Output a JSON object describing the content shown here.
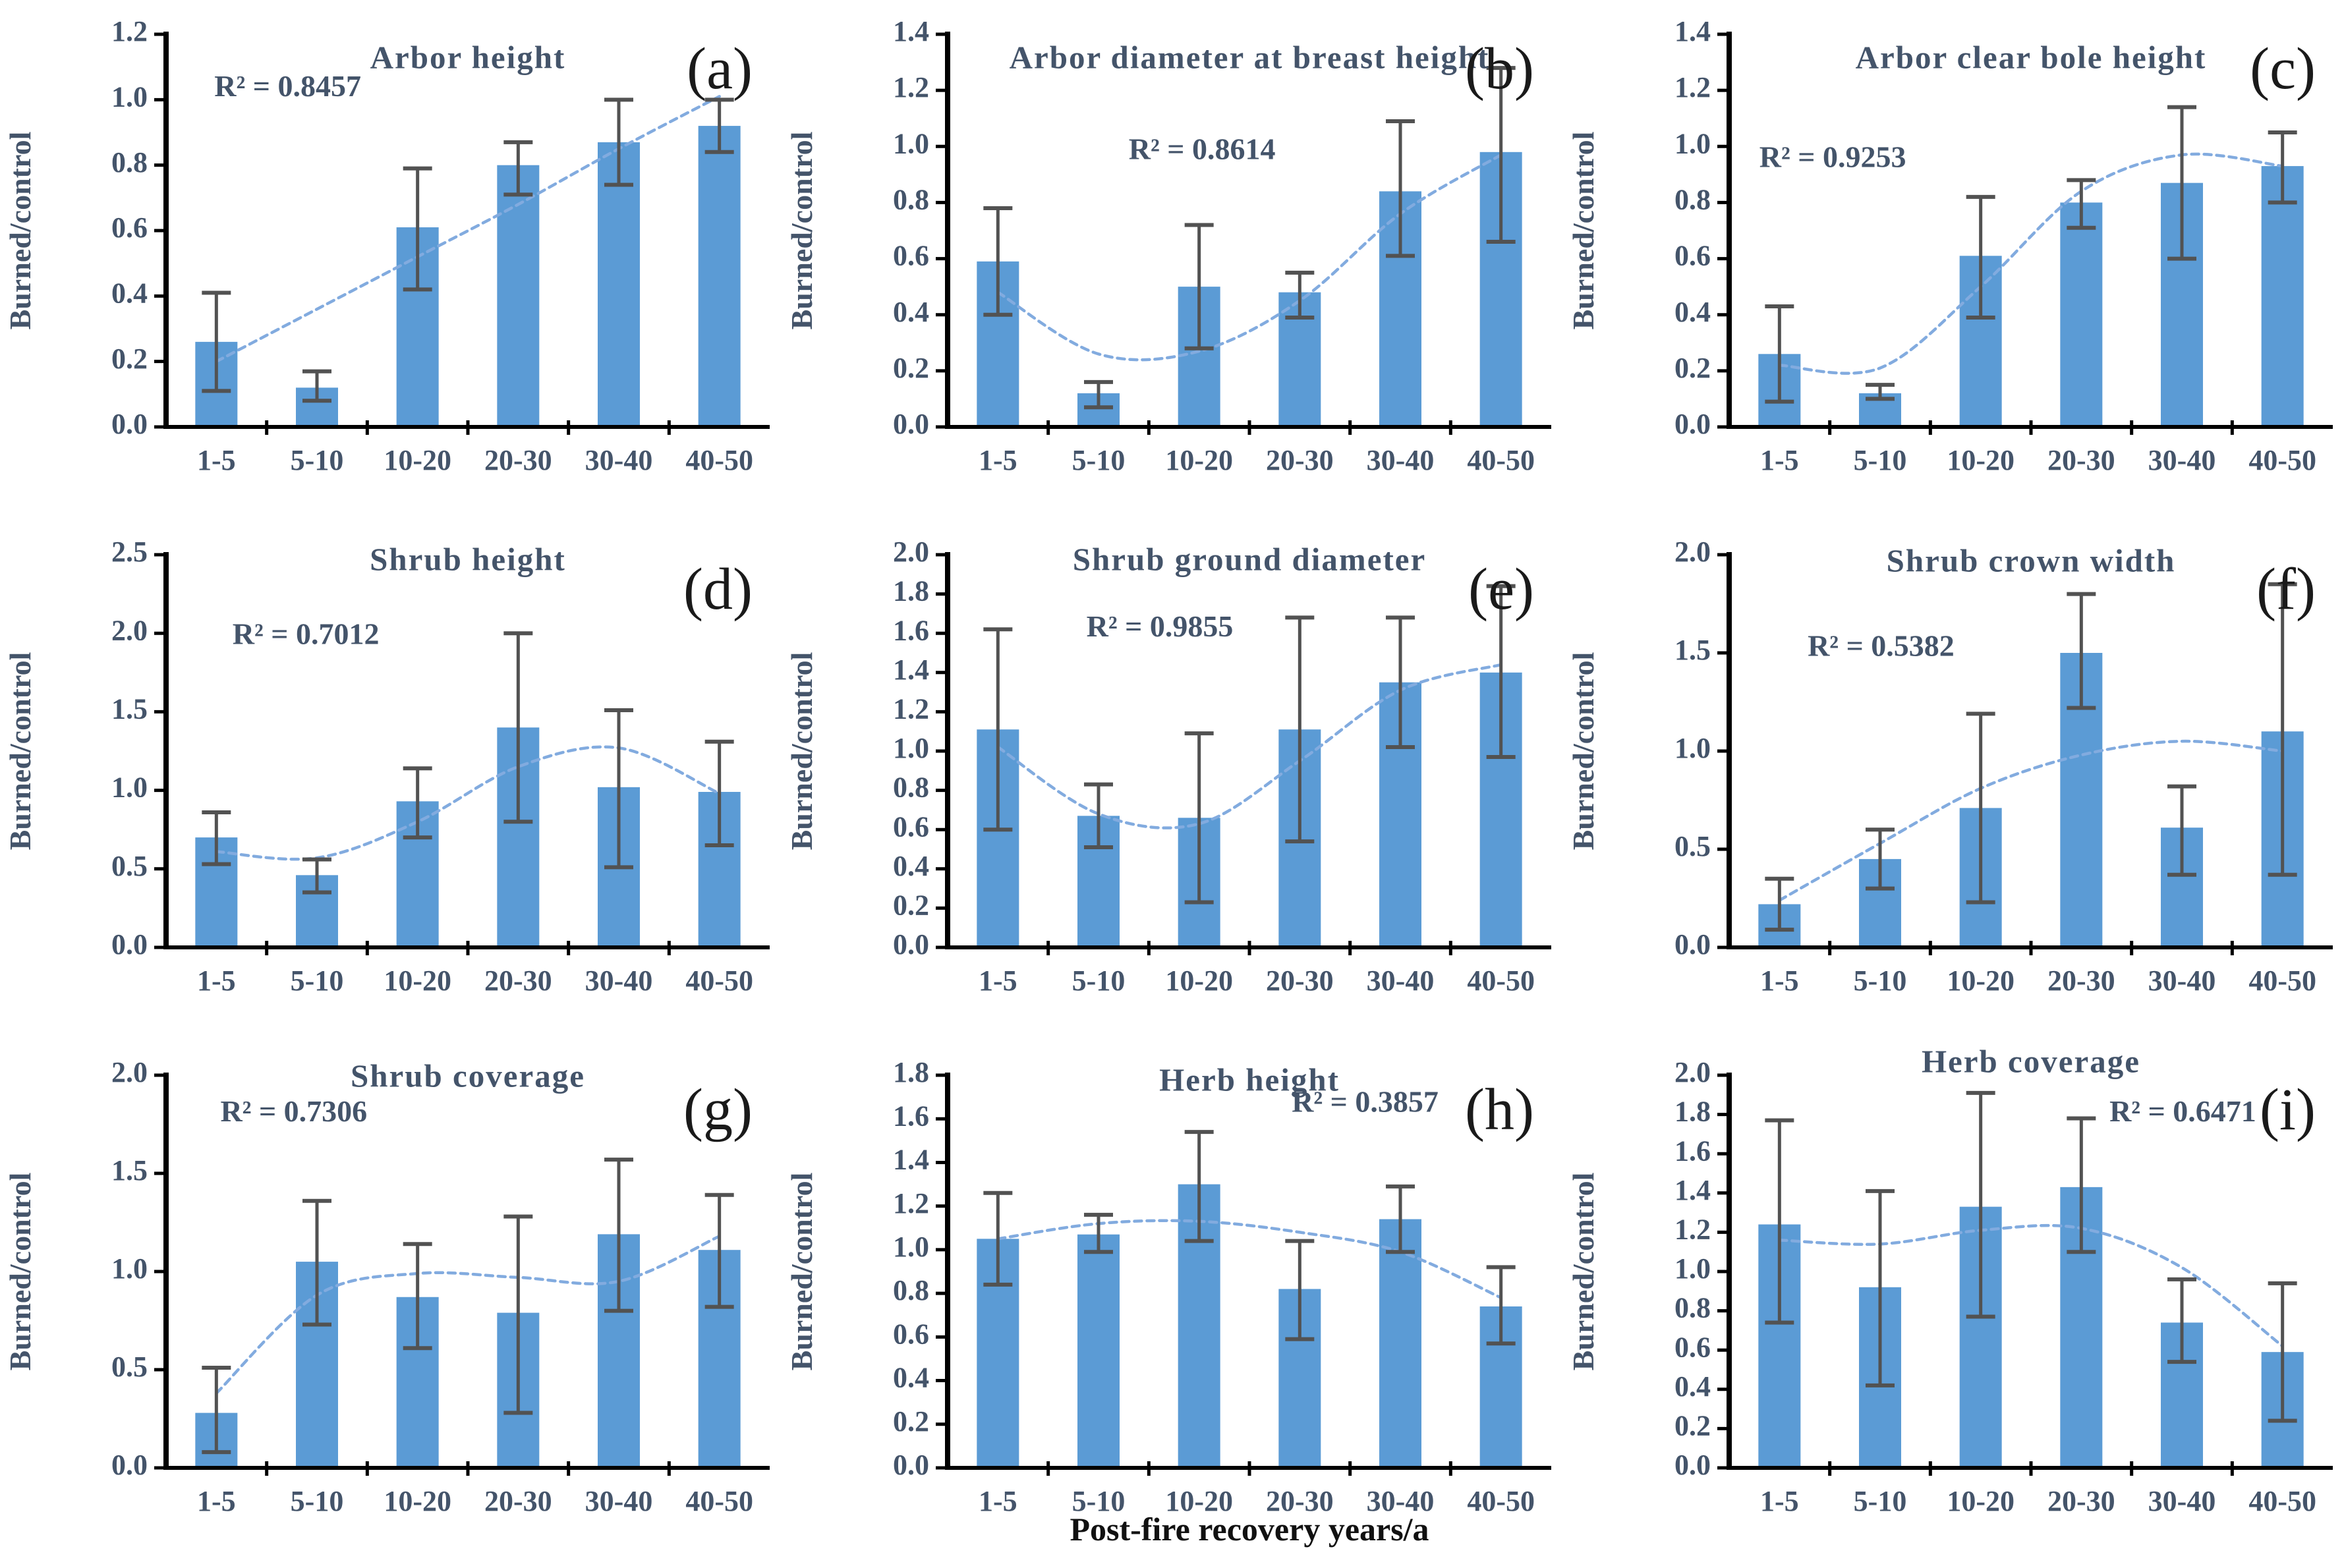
{
  "figure": {
    "x_axis_label": "Post-fire recovery years/a",
    "y_axis_label": "Burned/control",
    "categories": [
      "1-5",
      "5-10",
      "10-20",
      "20-30",
      "30-40",
      "40-50"
    ],
    "colors": {
      "bar_fill": "#5B9BD5",
      "trend_line": "#82ABDF",
      "error_bar": "#525252",
      "axis": "#000000",
      "tick_text": "#44546A",
      "title_text": "#44546A",
      "r2_text": "#44546A",
      "panel_letter": "#1a1a1a",
      "x_axis_title_text": "#111111"
    }
  },
  "chart_data": [
    {
      "type": "bar",
      "panel": "(a)",
      "title": "Arbor height",
      "r2_label": "R² = 0.8457",
      "ylabel": "Burned/control",
      "ylim": [
        0,
        1.2
      ],
      "ystep": 0.2,
      "categories": [
        "1-5",
        "5-10",
        "10-20",
        "20-30",
        "30-40",
        "40-50"
      ],
      "values": [
        0.26,
        0.12,
        0.61,
        0.8,
        0.87,
        0.92
      ],
      "error_low": [
        0.11,
        0.08,
        0.42,
        0.71,
        0.74,
        0.84
      ],
      "error_high": [
        0.41,
        0.17,
        0.79,
        0.87,
        1.0,
        1.0
      ],
      "trend": [
        0.2,
        0.36,
        0.52,
        0.68,
        0.85,
        1.01
      ],
      "r2_x": 0.08,
      "r2_y": 0.14,
      "title_dy": 40
    },
    {
      "type": "bar",
      "panel": "(b)",
      "title": "Arbor diameter at breast height",
      "r2_label": "R² = 0.8614",
      "ylabel": "Burned/control",
      "ylim": [
        0,
        1.4
      ],
      "ystep": 0.2,
      "categories": [
        "1-5",
        "5-10",
        "10-20",
        "20-30",
        "30-40",
        "40-50"
      ],
      "values": [
        0.59,
        0.12,
        0.5,
        0.48,
        0.84,
        0.98
      ],
      "error_low": [
        0.4,
        0.07,
        0.28,
        0.39,
        0.61,
        0.66
      ],
      "error_high": [
        0.78,
        0.16,
        0.72,
        0.55,
        1.09,
        1.28
      ],
      "trend": [
        0.48,
        0.26,
        0.27,
        0.45,
        0.76,
        0.97
      ],
      "r2_x": 0.3,
      "r2_y": 0.3,
      "title_dy": 40
    },
    {
      "type": "bar",
      "panel": "(c)",
      "title": "Arbor clear bole height",
      "r2_label": "R² = 0.9253",
      "ylabel": "Burned/control",
      "ylim": [
        0,
        1.4
      ],
      "ystep": 0.2,
      "categories": [
        "1-5",
        "5-10",
        "10-20",
        "20-30",
        "30-40",
        "40-50"
      ],
      "values": [
        0.26,
        0.12,
        0.61,
        0.8,
        0.87,
        0.93
      ],
      "error_low": [
        0.09,
        0.1,
        0.39,
        0.71,
        0.6,
        0.8
      ],
      "error_high": [
        0.43,
        0.15,
        0.82,
        0.88,
        1.14,
        1.05
      ],
      "trend": [
        0.22,
        0.21,
        0.5,
        0.84,
        0.97,
        0.93
      ],
      "r2_x": 0.05,
      "r2_y": 0.32,
      "title_dy": 40
    },
    {
      "type": "bar",
      "panel": "(d)",
      "title": "Shrub height",
      "r2_label": "R² = 0.7012",
      "ylabel": "Burned/control",
      "ylim": [
        0,
        2.5
      ],
      "ystep": 0.5,
      "categories": [
        "1-5",
        "5-10",
        "10-20",
        "20-30",
        "30-40",
        "40-50"
      ],
      "values": [
        0.7,
        0.46,
        0.93,
        1.4,
        1.02,
        0.99
      ],
      "error_low": [
        0.53,
        0.35,
        0.7,
        0.8,
        0.51,
        0.65
      ],
      "error_high": [
        0.86,
        0.56,
        1.14,
        2.0,
        1.51,
        1.31
      ],
      "trend": [
        0.61,
        0.57,
        0.8,
        1.15,
        1.27,
        0.98
      ],
      "r2_x": 0.11,
      "r2_y": 0.21,
      "title_dy": 12
    },
    {
      "type": "bar",
      "panel": "(e)",
      "title": "Shrub ground diameter",
      "r2_label": "R² = 0.9855",
      "ylabel": "Burned/control",
      "ylim": [
        0,
        2.0
      ],
      "ystep": 0.2,
      "categories": [
        "1-5",
        "5-10",
        "10-20",
        "20-30",
        "30-40",
        "40-50"
      ],
      "values": [
        1.11,
        0.67,
        0.66,
        1.11,
        1.35,
        1.4
      ],
      "error_low": [
        0.6,
        0.51,
        0.23,
        0.54,
        1.02,
        0.97
      ],
      "error_high": [
        1.62,
        0.83,
        1.09,
        1.68,
        1.68,
        1.84
      ],
      "trend": [
        1.02,
        0.68,
        0.63,
        0.95,
        1.31,
        1.44
      ],
      "r2_x": 0.23,
      "r2_y": 0.19,
      "title_dy": 12
    },
    {
      "type": "bar",
      "panel": "(f)",
      "title": "Shrub crown width",
      "r2_label": "R² = 0.5382",
      "ylabel": "Burned/control",
      "ylim": [
        0,
        2.0
      ],
      "ystep": 0.5,
      "categories": [
        "1-5",
        "5-10",
        "10-20",
        "20-30",
        "30-40",
        "40-50"
      ],
      "values": [
        0.22,
        0.45,
        0.71,
        1.5,
        0.61,
        1.1
      ],
      "error_low": [
        0.09,
        0.3,
        0.23,
        1.22,
        0.37,
        0.37
      ],
      "error_high": [
        0.35,
        0.6,
        1.19,
        1.8,
        0.82,
        1.85
      ],
      "trend": [
        0.24,
        0.53,
        0.81,
        0.98,
        1.05,
        1.0
      ],
      "r2_x": 0.13,
      "r2_y": 0.24,
      "title_dy": 14
    },
    {
      "type": "bar",
      "panel": "(g)",
      "title": "Shrub coverage",
      "r2_label": "R² = 0.7306",
      "ylabel": "Burned/control",
      "ylim": [
        0,
        2.0
      ],
      "ystep": 0.5,
      "categories": [
        "1-5",
        "5-10",
        "10-20",
        "20-30",
        "30-40",
        "40-50"
      ],
      "values": [
        0.28,
        1.05,
        0.87,
        0.79,
        1.19,
        1.11
      ],
      "error_low": [
        0.08,
        0.73,
        0.61,
        0.28,
        0.8,
        0.82
      ],
      "error_high": [
        0.51,
        1.36,
        1.14,
        1.28,
        1.57,
        1.39
      ],
      "trend": [
        0.38,
        0.88,
        0.99,
        0.97,
        0.95,
        1.18
      ],
      "r2_x": 0.09,
      "r2_y": 0.1,
      "title_dy": 6
    },
    {
      "type": "bar",
      "panel": "(h)",
      "title": "Herb height",
      "r2_label": "R² = 0.3857",
      "ylabel": "Burned/control",
      "ylim": [
        0,
        1.8
      ],
      "ystep": 0.2,
      "categories": [
        "1-5",
        "5-10",
        "10-20",
        "20-30",
        "30-40",
        "40-50"
      ],
      "values": [
        1.05,
        1.07,
        1.3,
        0.82,
        1.14,
        0.74
      ],
      "error_low": [
        0.84,
        0.99,
        1.04,
        0.59,
        0.99,
        0.57
      ],
      "error_high": [
        1.26,
        1.16,
        1.54,
        1.04,
        1.29,
        0.92
      ],
      "trend": [
        1.05,
        1.12,
        1.13,
        1.08,
        0.99,
        0.78
      ],
      "r2_x": 0.57,
      "r2_y": 0.075,
      "title_dy": 12
    },
    {
      "type": "bar",
      "panel": "(i)",
      "title": "Herb coverage",
      "r2_label": "R² = 0.6471",
      "ylabel": "Burned/control",
      "ylim": [
        0,
        2.0
      ],
      "ystep": 0.2,
      "categories": [
        "1-5",
        "5-10",
        "10-20",
        "20-30",
        "30-40",
        "40-50"
      ],
      "values": [
        1.24,
        0.92,
        1.33,
        1.43,
        0.74,
        0.59
      ],
      "error_low": [
        0.74,
        0.42,
        0.77,
        1.1,
        0.54,
        0.24
      ],
      "error_high": [
        1.77,
        1.41,
        1.91,
        1.78,
        0.96,
        0.94
      ],
      "trend": [
        1.16,
        1.14,
        1.21,
        1.22,
        1.02,
        0.62
      ],
      "r2_x": 0.63,
      "r2_y": 0.1,
      "title_dy": -16
    }
  ]
}
